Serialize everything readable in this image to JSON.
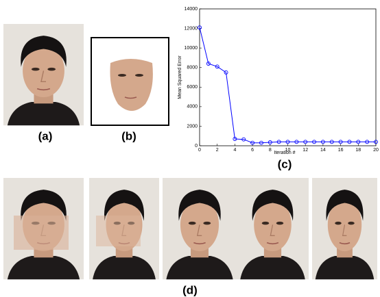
{
  "labels": {
    "a": "(a)",
    "b": "(b)",
    "c": "(c)",
    "d": "(d)"
  },
  "chart_data": {
    "type": "line",
    "xlabel": "Iteration #",
    "ylabel": "Mean Squared Error",
    "x": [
      0,
      1,
      2,
      3,
      4,
      5,
      6,
      7,
      8,
      9,
      10,
      11,
      12,
      13,
      14,
      15,
      16,
      17,
      18,
      19,
      20
    ],
    "series": [
      {
        "color": "#0000ff",
        "values": [
          12100,
          8400,
          8100,
          7500,
          700,
          650,
          300,
          300,
          350,
          400,
          400,
          400,
          400,
          400,
          400,
          400,
          400,
          400,
          400,
          400,
          400
        ]
      }
    ],
    "xlim": [
      0,
      20
    ],
    "xticks": [
      0,
      2,
      4,
      6,
      8,
      10,
      12,
      14,
      16,
      18,
      20
    ],
    "ylim": [
      0,
      14000
    ],
    "yticks": [
      0,
      2000,
      4000,
      6000,
      8000,
      10000,
      12000,
      14000
    ],
    "grid": false
  }
}
